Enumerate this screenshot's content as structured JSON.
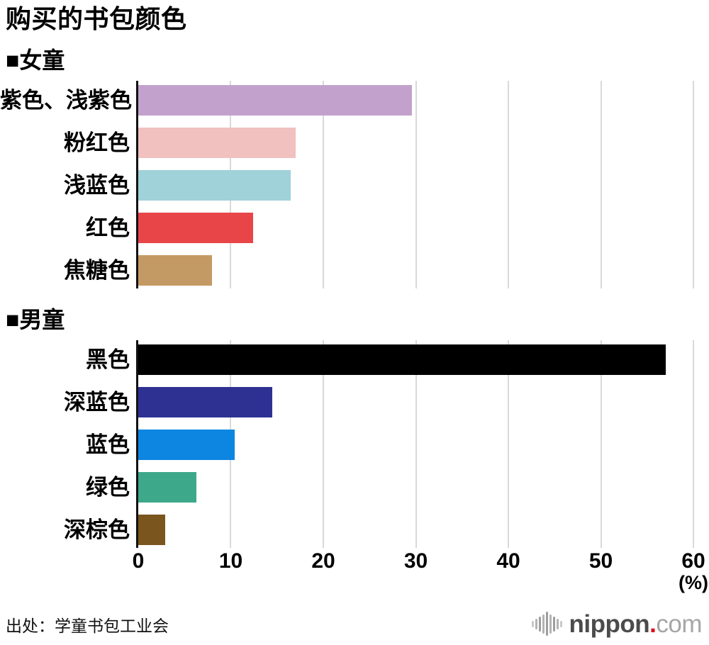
{
  "title": "购买的书包颜色",
  "source": "出处：学童书包工业会",
  "axis": {
    "ticks": [
      0,
      10,
      20,
      30,
      40,
      50,
      60
    ],
    "max": 60,
    "unit_label": "(%)"
  },
  "logo": {
    "name": "nippon",
    "dot": ".",
    "tld": "com"
  },
  "colors": {
    "gridline": "#d9d9d9",
    "axis_spine": "#111111",
    "logo_red": "#e60012",
    "logo_gray_dark": "#4b4b4b",
    "logo_gray_light": "#a6a6a6"
  },
  "chart_data": [
    {
      "type": "bar",
      "orientation": "horizontal",
      "title": "■女童",
      "xlim": [
        0,
        60
      ],
      "grid": true,
      "categories": [
        "紫色、浅紫色",
        "粉红色",
        "浅蓝色",
        "红色",
        "焦糖色"
      ],
      "values": [
        29.6,
        17.0,
        16.5,
        12.4,
        8.0
      ],
      "colors": [
        "#c2a2cc",
        "#f0c1bf",
        "#9fd2d9",
        "#e84549",
        "#c49a64"
      ]
    },
    {
      "type": "bar",
      "orientation": "horizontal",
      "title": "■男童",
      "xlim": [
        0,
        60
      ],
      "grid": true,
      "categories": [
        "黑色",
        "深蓝色",
        "蓝色",
        "绿色",
        "深棕色"
      ],
      "values": [
        57.0,
        14.5,
        10.4,
        6.3,
        2.9
      ],
      "colors": [
        "#000000",
        "#2e3192",
        "#0d86e1",
        "#3ea88a",
        "#7a551d"
      ]
    }
  ]
}
